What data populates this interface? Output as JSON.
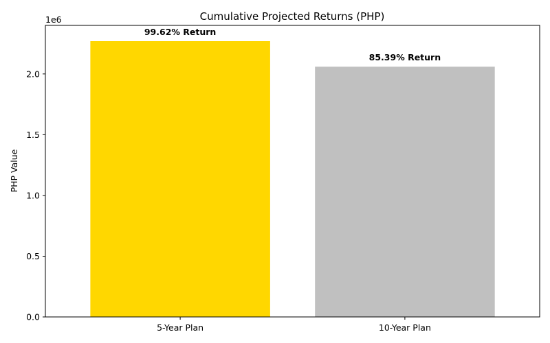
{
  "chart_data": {
    "type": "bar",
    "title": "Cumulative Projected Returns (PHP)",
    "xlabel": "",
    "ylabel": "PHP Value",
    "categories": [
      "5-Year Plan",
      "10-Year Plan"
    ],
    "values": [
      2270000,
      2060000
    ],
    "colors": [
      "#FFD700",
      "#C0C0C0"
    ],
    "data_labels": [
      "99.62% Return",
      "85.39% Return"
    ],
    "ylim": [
      0,
      2400000
    ],
    "yticks": [
      0,
      500000,
      1000000,
      1500000,
      2000000
    ],
    "ytick_labels": [
      "0.0",
      "0.5",
      "1.0",
      "1.5",
      "2.0"
    ],
    "y_offset_label": "1e6",
    "grid": false,
    "legend": "none"
  }
}
